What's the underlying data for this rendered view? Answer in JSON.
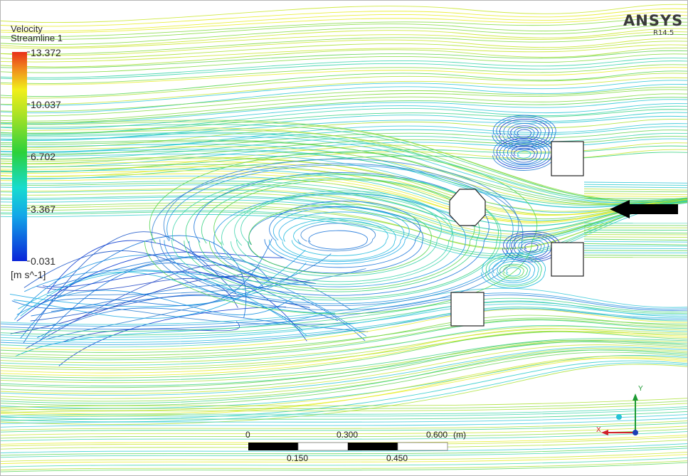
{
  "legend": {
    "variable": "Velocity",
    "object": "Streamline 1",
    "ticks": [
      "13.372",
      "10.037",
      "6.702",
      "3.367",
      "0.031"
    ],
    "unit": "[m s^-1]",
    "colors": [
      "#0a24d8",
      "#10c8e6",
      "#2bd13a",
      "#f1ef1a",
      "#e8301a"
    ]
  },
  "branding": {
    "name": "ANSYS",
    "version": "R14.5"
  },
  "scale": {
    "top_labels": [
      "0",
      "0.300",
      "0.600"
    ],
    "unit": "(m)",
    "bottom_labels": [
      "0.150",
      "0.450"
    ]
  },
  "axes": {
    "x": "X",
    "y": "Y",
    "x_color": "#d0202a",
    "y_color": "#1c9a32",
    "z_color": "#1d3fb5",
    "ball_color": "#27c3d8"
  },
  "flow": {
    "arrow_direction": "left",
    "arrow_color": "#000000"
  }
}
